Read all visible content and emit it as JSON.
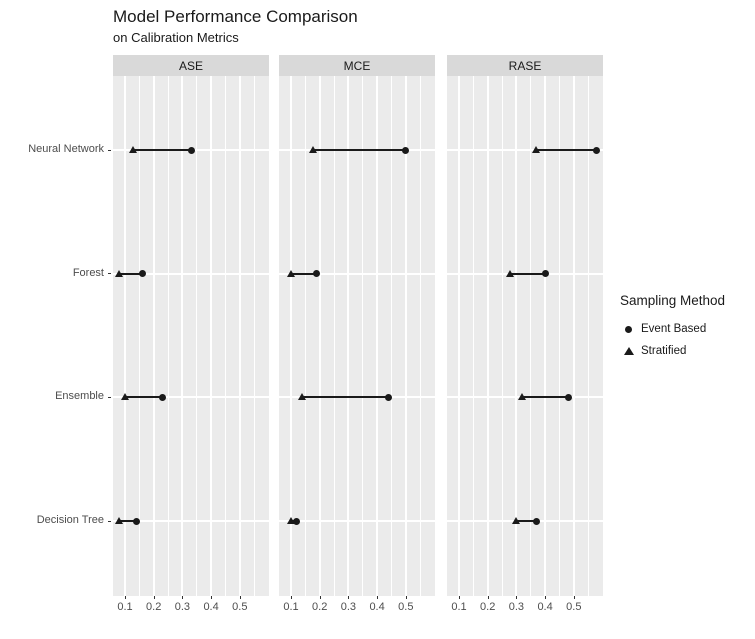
{
  "header": {
    "title": "Model Performance Comparison",
    "subtitle": "on Calibration Metrics"
  },
  "chart_data": {
    "type": "scatter",
    "variant": "faceted-dot-range-plot",
    "title": "Model Performance Comparison",
    "subtitle": "on Calibration Metrics",
    "facets": [
      "ASE",
      "MCE",
      "RASE"
    ],
    "categories": [
      "Neural Network",
      "Forest",
      "Ensemble",
      "Decision Tree"
    ],
    "x_ticks": [
      0.1,
      0.2,
      0.3,
      0.4,
      0.5
    ],
    "x_minor_ticks": [
      0.15,
      0.25,
      0.35,
      0.45,
      0.55
    ],
    "x_range": [
      0.058,
      0.602
    ],
    "grid": true,
    "legend": {
      "title": "Sampling Method",
      "position": "right",
      "items": [
        {
          "label": "Event Based",
          "marker": "circle"
        },
        {
          "label": "Stratified",
          "marker": "triangle"
        }
      ]
    },
    "series": [
      {
        "name": "Event Based",
        "marker": "circle",
        "values": {
          "ASE": [
            0.33,
            0.16,
            0.23,
            0.14
          ],
          "MCE": [
            0.5,
            0.19,
            0.44,
            0.12
          ],
          "RASE": [
            0.58,
            0.4,
            0.48,
            0.37
          ]
        }
      },
      {
        "name": "Stratified",
        "marker": "triangle",
        "values": {
          "ASE": [
            0.13,
            0.08,
            0.1,
            0.08
          ],
          "MCE": [
            0.18,
            0.1,
            0.14,
            0.1
          ],
          "RASE": [
            0.37,
            0.28,
            0.32,
            0.3
          ]
        }
      }
    ],
    "colors": {
      "point": "#1a1a1a",
      "segment": "#1a1a1a",
      "panel_bg": "#ebebeb",
      "strip_bg": "#d9d9d9",
      "grid_major": "#ffffff",
      "grid_minor": "#ffffff",
      "axis_text": "#4d4d4d",
      "tick_mark": "#333333"
    }
  }
}
